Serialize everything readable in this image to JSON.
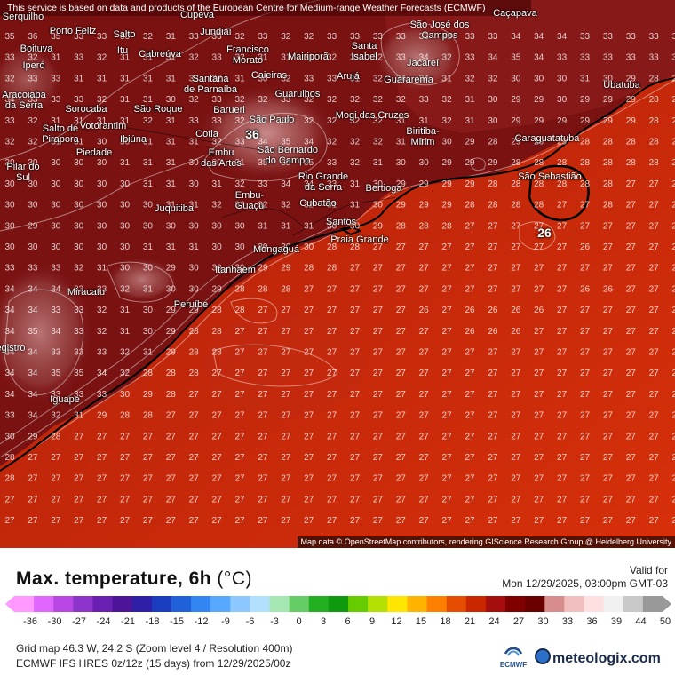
{
  "disclaimer": "This service is based on data and products of the European Centre for Medium-range Weather Forecasts (ECMWF)",
  "attribution": "Map data © OpenStreetMap contributors, rendering GIScience Research Group @ Heidelberg University",
  "title": "Max. temperature, 6h",
  "unit": "(°C)",
  "valid_label": "Valid for",
  "valid_time": "Mon 12/29/2025, 03:00pm GMT-03",
  "grid_info": "Grid map 46.3 W, 24.2 S (Zoom level 4 / Resolution 400m)",
  "model_info": "ECMWF IFS HRES 0z/12z (15 days) from 12/29/2025/00z",
  "ecmwf_logo": "ECMWF",
  "brand": "meteologix.com",
  "brand_icon": "meteologix-globe-icon",
  "scale": {
    "ticks": [
      "-36",
      "-30",
      "-27",
      "-24",
      "-21",
      "-18",
      "-15",
      "-12",
      "-9",
      "-6",
      "-3",
      "0",
      "3",
      "6",
      "9",
      "12",
      "15",
      "18",
      "21",
      "24",
      "27",
      "30",
      "33",
      "36",
      "39",
      "44",
      "50"
    ],
    "colors": [
      "#ff99ff",
      "#e066ff",
      "#b847e6",
      "#8c33cc",
      "#6a1fb3",
      "#4d1499",
      "#2e1fa6",
      "#1a3cbf",
      "#2060d9",
      "#3385f2",
      "#59a8ff",
      "#8cc8ff",
      "#b3e0ff",
      "#a6e6b3",
      "#66cc66",
      "#22b022",
      "#0f990f",
      "#66cc00",
      "#b3e000",
      "#ffe600",
      "#ffb300",
      "#ff8000",
      "#e64d00",
      "#cc2600",
      "#a60d0d",
      "#800000",
      "#6b0000",
      "#d98c8c",
      "#f2bfbf",
      "#ffe0e0",
      "#f0f0f0",
      "#c8c8c8",
      "#999999"
    ]
  },
  "peaks": [
    {
      "label": "36"
    },
    {
      "label": "26"
    }
  ],
  "cities": [
    {
      "name": "Serquilho"
    },
    {
      "name": "Porto Feliz"
    },
    {
      "name": "Salto"
    },
    {
      "name": "Jundiaí"
    },
    {
      "name": "Cupeva"
    },
    {
      "name": "São José dos\nCampos"
    },
    {
      "name": "Caçapava"
    },
    {
      "name": "Boituva"
    },
    {
      "name": "Iperó"
    },
    {
      "name": "Itu"
    },
    {
      "name": "Cabreúva"
    },
    {
      "name": "Francisco\nMorato"
    },
    {
      "name": "Mairiporã"
    },
    {
      "name": "Santa\nIsabel"
    },
    {
      "name": "Jacareí"
    },
    {
      "name": "Araçoiaba\nda Serra"
    },
    {
      "name": "Santana\nde Parnaíba"
    },
    {
      "name": "Caieiras"
    },
    {
      "name": "Arujá"
    },
    {
      "name": "Guararema"
    },
    {
      "name": "Guarulhos"
    },
    {
      "name": "Ubatuba"
    },
    {
      "name": "Sorocaba"
    },
    {
      "name": "São Roque"
    },
    {
      "name": "Barueri"
    },
    {
      "name": "São Paulo"
    },
    {
      "name": "Mogi das Cruzes"
    },
    {
      "name": "Votorantim"
    },
    {
      "name": "Salto de\nPirapora"
    },
    {
      "name": "Biritiba-\nMirim"
    },
    {
      "name": "Ibiúna"
    },
    {
      "name": "Cotia"
    },
    {
      "name": "Caraguatatuba"
    },
    {
      "name": "Piedade"
    },
    {
      "name": "Embu\ndas Artes"
    },
    {
      "name": "São Bernardo\ndo Campo"
    },
    {
      "name": "Pilar do\nSul"
    },
    {
      "name": "São Sebastião"
    },
    {
      "name": "Rio Grande\nda Serra"
    },
    {
      "name": "Bertioga"
    },
    {
      "name": "Embu-\nGuaçu"
    },
    {
      "name": "Juquitiba"
    },
    {
      "name": "Cubatão"
    },
    {
      "name": "Santos"
    },
    {
      "name": "Praia Grande"
    },
    {
      "name": "Mongaguá"
    },
    {
      "name": "Itanhaém"
    },
    {
      "name": "Miracatu"
    },
    {
      "name": "Peruíbe"
    },
    {
      "name": "Registro"
    },
    {
      "name": "Iguape"
    }
  ],
  "grid_values": [
    [
      35,
      36,
      35,
      33,
      33,
      33,
      32,
      31,
      33,
      33,
      32,
      33,
      32,
      32,
      33,
      33,
      33,
      33,
      33,
      33,
      33,
      33,
      34,
      34,
      34,
      33,
      33,
      33,
      33,
      33
    ],
    [
      33,
      32,
      31,
      33,
      32,
      31,
      31,
      31,
      32,
      33,
      32,
      31,
      31,
      31,
      32,
      31,
      32,
      33,
      34,
      32,
      33,
      34,
      35,
      34,
      33,
      33,
      33,
      33,
      33,
      33
    ],
    [
      32,
      33,
      33,
      31,
      31,
      31,
      31,
      31,
      33,
      32,
      31,
      30,
      32,
      33,
      33,
      31,
      32,
      34,
      34,
      31,
      32,
      32,
      30,
      30,
      30,
      31,
      30,
      29,
      28,
      27
    ],
    [
      34,
      33,
      33,
      33,
      32,
      31,
      31,
      30,
      32,
      33,
      32,
      32,
      33,
      32,
      32,
      32,
      32,
      32,
      33,
      32,
      31,
      30,
      29,
      29,
      30,
      29,
      29,
      29,
      28,
      28
    ],
    [
      33,
      32,
      31,
      31,
      31,
      31,
      32,
      31,
      33,
      33,
      32,
      32,
      33,
      32,
      32,
      32,
      32,
      31,
      31,
      32,
      31,
      30,
      29,
      29,
      29,
      29,
      29,
      29,
      28,
      28
    ],
    [
      32,
      32,
      31,
      31,
      30,
      30,
      31,
      31,
      31,
      32,
      33,
      34,
      35,
      34,
      32,
      32,
      32,
      31,
      31,
      30,
      29,
      28,
      29,
      29,
      29,
      28,
      28,
      28,
      28,
      27
    ],
    [
      30,
      30,
      30,
      30,
      30,
      31,
      31,
      31,
      30,
      30,
      31,
      35,
      35,
      35,
      33,
      32,
      31,
      30,
      30,
      29,
      29,
      29,
      28,
      28,
      28,
      28,
      28,
      28,
      28,
      27
    ],
    [
      30,
      30,
      30,
      30,
      30,
      30,
      31,
      31,
      30,
      31,
      32,
      33,
      34,
      34,
      33,
      31,
      30,
      29,
      29,
      29,
      29,
      28,
      28,
      28,
      28,
      28,
      28,
      27,
      27,
      27
    ],
    [
      30,
      30,
      30,
      30,
      30,
      30,
      30,
      31,
      31,
      32,
      32,
      32,
      32,
      32,
      31,
      31,
      30,
      29,
      29,
      29,
      28,
      28,
      28,
      28,
      27,
      27,
      28,
      27,
      27,
      27
    ],
    [
      30,
      29,
      30,
      30,
      30,
      30,
      30,
      30,
      30,
      30,
      30,
      31,
      31,
      31,
      30,
      30,
      29,
      28,
      28,
      28,
      27,
      27,
      27,
      27,
      27,
      27,
      27,
      27,
      27,
      27
    ],
    [
      30,
      30,
      30,
      30,
      30,
      30,
      31,
      31,
      31,
      30,
      30,
      30,
      30,
      30,
      28,
      28,
      27,
      27,
      27,
      27,
      27,
      27,
      27,
      27,
      27,
      26,
      27,
      27,
      27,
      27
    ],
    [
      33,
      33,
      33,
      32,
      31,
      30,
      30,
      29,
      30,
      30,
      30,
      29,
      29,
      28,
      28,
      27,
      27,
      27,
      27,
      27,
      27,
      27,
      27,
      27,
      27,
      27,
      27,
      27,
      27,
      26
    ],
    [
      34,
      34,
      34,
      33,
      33,
      32,
      31,
      30,
      30,
      29,
      28,
      28,
      28,
      27,
      27,
      27,
      27,
      27,
      27,
      27,
      27,
      27,
      27,
      27,
      27,
      26,
      26,
      27,
      27,
      27
    ],
    [
      34,
      34,
      33,
      33,
      32,
      31,
      30,
      29,
      29,
      28,
      28,
      27,
      27,
      27,
      27,
      27,
      27,
      27,
      26,
      27,
      26,
      26,
      26,
      26,
      27,
      27,
      27,
      27,
      27,
      27
    ],
    [
      34,
      35,
      34,
      33,
      32,
      31,
      30,
      29,
      28,
      28,
      27,
      27,
      27,
      27,
      27,
      27,
      27,
      27,
      27,
      27,
      26,
      26,
      26,
      27,
      27,
      27,
      27,
      27,
      27,
      27
    ],
    [
      34,
      34,
      33,
      33,
      33,
      32,
      31,
      29,
      28,
      28,
      27,
      27,
      27,
      27,
      27,
      27,
      27,
      27,
      27,
      27,
      27,
      27,
      27,
      27,
      27,
      27,
      27,
      27,
      27,
      27
    ],
    [
      34,
      34,
      35,
      35,
      34,
      32,
      28,
      28,
      28,
      27,
      27,
      27,
      27,
      27,
      27,
      27,
      27,
      27,
      27,
      27,
      27,
      27,
      27,
      27,
      27,
      27,
      27,
      27,
      27,
      27
    ],
    [
      34,
      34,
      33,
      33,
      33,
      30,
      29,
      28,
      27,
      27,
      27,
      27,
      27,
      27,
      27,
      27,
      27,
      27,
      27,
      27,
      27,
      27,
      27,
      27,
      27,
      27,
      27,
      27,
      27,
      27
    ],
    [
      33,
      34,
      32,
      31,
      29,
      28,
      28,
      27,
      27,
      27,
      27,
      27,
      27,
      27,
      27,
      27,
      27,
      27,
      27,
      27,
      27,
      27,
      27,
      27,
      27,
      27,
      27,
      27,
      27,
      27
    ],
    [
      30,
      29,
      28,
      27,
      27,
      27,
      27,
      27,
      27,
      27,
      27,
      27,
      27,
      27,
      27,
      27,
      27,
      27,
      27,
      27,
      27,
      27,
      27,
      27,
      27,
      27,
      27,
      27,
      27,
      27
    ],
    [
      28,
      27,
      27,
      27,
      27,
      27,
      27,
      27,
      27,
      27,
      27,
      27,
      27,
      27,
      27,
      27,
      27,
      27,
      27,
      27,
      27,
      27,
      27,
      27,
      27,
      27,
      27,
      27,
      27,
      27
    ],
    [
      28,
      27,
      27,
      27,
      27,
      27,
      27,
      27,
      27,
      27,
      27,
      27,
      27,
      27,
      27,
      27,
      27,
      27,
      27,
      27,
      27,
      27,
      27,
      27,
      27,
      27,
      27,
      27,
      27,
      27
    ],
    [
      27,
      27,
      27,
      27,
      27,
      27,
      27,
      27,
      27,
      27,
      27,
      27,
      27,
      27,
      27,
      27,
      27,
      27,
      27,
      27,
      27,
      27,
      27,
      27,
      27,
      27,
      27,
      27,
      27,
      27
    ],
    [
      27,
      27,
      27,
      27,
      27,
      27,
      27,
      27,
      27,
      27,
      27,
      27,
      27,
      27,
      27,
      27,
      27,
      27,
      27,
      27,
      27,
      27,
      27,
      27,
      27,
      27,
      27,
      27,
      27,
      27
    ]
  ]
}
